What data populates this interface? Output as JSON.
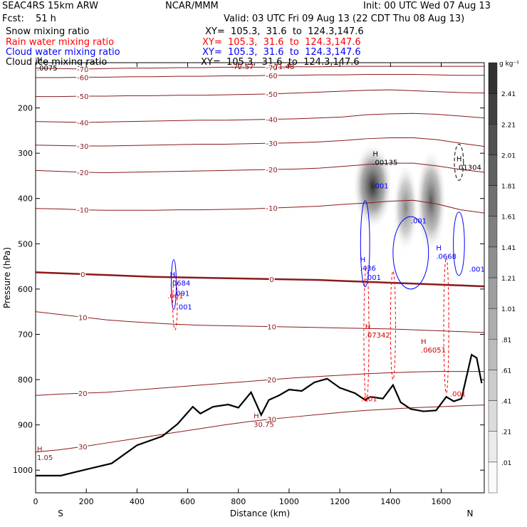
{
  "header": {
    "model": "SEAC4RS 15km ARW",
    "center": "NCAR/MMM",
    "init": "Init: 00 UTC Wed 07 Aug 13",
    "fcst_label": "Fcst:",
    "fcst_value": "51 h",
    "valid": "Valid: 03 UTC Fri 09 Aug 13 (22 CDT Thu 08 Aug 13)"
  },
  "fields": [
    {
      "name": "Snow mixing ratio",
      "color": "#000000",
      "xy": "XY=  105.3,  31.6  to  124.3,147.6"
    },
    {
      "name": "Rain water mixing ratio",
      "color": "#ff0000",
      "xy": "XY=  105.3,  31.6  to  124.3,147.6"
    },
    {
      "name": "Cloud water mixing ratio",
      "color": "#0000ff",
      "xy": "XY=  105.3,  31.6  to  124.3,147.6"
    },
    {
      "name": "Cloud ice mixing ratio",
      "color": "#000000",
      "xy": "XY=  105.3,  31.6  to  124.3,147.6"
    }
  ],
  "chart_data": {
    "type": "contour-cross-section",
    "xlabel": "Distance (km)",
    "ylabel": "Pressure (hPa)",
    "xlim": [
      0,
      1770
    ],
    "ylim": [
      1050,
      100
    ],
    "x_ticks": [
      0,
      200,
      400,
      600,
      800,
      1000,
      1200,
      1400,
      1600
    ],
    "y_ticks": [
      200,
      300,
      400,
      500,
      600,
      700,
      800,
      900,
      1000
    ],
    "left_end_label": "S",
    "right_end_label": "N",
    "colorbar": {
      "unit": "g kg⁻¹",
      "levels": [
        ".01",
        ".21",
        ".41",
        ".61",
        ".81",
        "1.01",
        "1.21",
        "1.41",
        "1.61",
        "1.81",
        "2.01",
        "2.21",
        "2.41"
      ]
    },
    "temperature_contours": [
      {
        "level": "-70",
        "p": [
          112,
          113,
          114,
          113,
          112,
          112,
          111,
          111,
          110,
          110,
          110,
          109,
          109,
          108,
          108,
          108,
          108,
          108,
          108,
          108
        ]
      },
      {
        "level": "-60",
        "p": [
          133,
          133,
          132,
          132,
          131,
          131,
          130,
          130,
          129,
          129,
          128,
          128,
          127,
          127,
          126,
          126,
          126,
          127,
          128,
          128
        ]
      },
      {
        "level": "-50",
        "p": [
          175,
          175,
          174,
          174,
          173,
          173,
          172,
          172,
          171,
          170,
          169,
          167,
          165,
          163,
          161,
          160,
          162,
          164,
          166,
          167
        ]
      },
      {
        "level": "-40",
        "p": [
          230,
          231,
          232,
          231,
          230,
          229,
          228,
          227,
          227,
          226,
          225,
          224,
          222,
          220,
          215,
          213,
          212,
          214,
          218,
          222
        ]
      },
      {
        "level": "-30",
        "p": [
          282,
          283,
          284,
          284,
          283,
          282,
          281,
          280,
          280,
          279,
          278,
          277,
          275,
          272,
          268,
          266,
          266,
          270,
          278,
          285
        ]
      },
      {
        "level": "-20",
        "p": [
          338,
          340,
          342,
          343,
          342,
          341,
          340,
          339,
          338,
          337,
          336,
          335,
          333,
          329,
          325,
          322,
          322,
          328,
          336,
          342
        ]
      },
      {
        "level": "-10",
        "p": [
          422,
          423,
          425,
          426,
          426,
          426,
          425,
          425,
          424,
          423,
          421,
          419,
          417,
          413,
          410,
          406,
          404,
          412,
          425,
          432
        ]
      },
      {
        "level": "0",
        "p": [
          563,
          565,
          567,
          569,
          571,
          573,
          574,
          575,
          576,
          577,
          578,
          579,
          580,
          582,
          584,
          586,
          588,
          590,
          592,
          594
        ]
      },
      {
        "level": "10",
        "p": [
          650,
          656,
          662,
          668,
          672,
          675,
          678,
          680,
          681,
          682,
          683,
          684,
          685,
          686,
          687,
          688,
          690,
          692,
          694,
          696
        ]
      },
      {
        "level": "20",
        "p": [
          835,
          832,
          830,
          828,
          824,
          820,
          816,
          812,
          808,
          804,
          800,
          796,
          793,
          790,
          787,
          785,
          783,
          782,
          782,
          782
        ]
      },
      {
        "level": "30",
        "p": [
          960,
          955,
          948,
          940,
          932,
          924,
          916,
          908,
          900,
          893,
          887,
          882,
          877,
          872,
          868,
          865,
          862,
          860,
          858,
          856
        ]
      }
    ],
    "terrain": [
      [
        0,
        1012
      ],
      [
        100,
        1012
      ],
      [
        150,
        1005
      ],
      [
        300,
        985
      ],
      [
        400,
        945
      ],
      [
        500,
        925
      ],
      [
        560,
        898
      ],
      [
        620,
        860
      ],
      [
        650,
        875
      ],
      [
        700,
        860
      ],
      [
        760,
        855
      ],
      [
        800,
        862
      ],
      [
        850,
        828
      ],
      [
        890,
        878
      ],
      [
        920,
        845
      ],
      [
        960,
        835
      ],
      [
        1000,
        822
      ],
      [
        1050,
        825
      ],
      [
        1100,
        806
      ],
      [
        1150,
        798
      ],
      [
        1200,
        818
      ],
      [
        1260,
        830
      ],
      [
        1300,
        845
      ],
      [
        1320,
        838
      ],
      [
        1370,
        842
      ],
      [
        1410,
        812
      ],
      [
        1440,
        850
      ],
      [
        1480,
        865
      ],
      [
        1530,
        870
      ],
      [
        1580,
        868
      ],
      [
        1620,
        838
      ],
      [
        1650,
        848
      ],
      [
        1680,
        842
      ],
      [
        1720,
        745
      ],
      [
        1740,
        752
      ],
      [
        1760,
        808
      ]
    ],
    "maxima": [
      {
        "field": "snow",
        "label": "H",
        "value": ".00135",
        "x": 1330,
        "p": 316
      },
      {
        "field": "ice",
        "label": "H",
        "value": ".01304",
        "x": 1660,
        "p": 327
      },
      {
        "field": "cloud",
        "label": "H",
        "value": ".0684",
        "x": 530,
        "p": 583
      },
      {
        "field": "cloud",
        "label": "H",
        "value": ".436",
        "x": 1280,
        "p": 550
      },
      {
        "field": "cloud",
        "label": "H",
        "value": ".0668",
        "x": 1580,
        "p": 524
      },
      {
        "field": "rain",
        "label": "H",
        "value": ".07342",
        "x": 1300,
        "p": 698
      },
      {
        "field": "rain",
        "label": "H",
        "value": ".06051",
        "x": 1520,
        "p": 731
      },
      {
        "field": "temp",
        "label": "H",
        "value": "30.75",
        "x": 860,
        "p": 895
      },
      {
        "field": "temp",
        "label": "H",
        "value": "1.05",
        "x": 0,
        "p": 968
      },
      {
        "field": "ice",
        "label": "H",
        "value": ".0075",
        "x": 0,
        "p": 108
      }
    ],
    "contour_value_labels": [
      {
        "text": "-72.57",
        "color": "#8b0000",
        "x": 770,
        "p": 114
      },
      {
        "text": "-71.48",
        "color": "#8b0000",
        "x": 930,
        "p": 114
      },
      {
        "text": ".001",
        "color": "#0000ff",
        "x": 1330,
        "p": 378
      },
      {
        "text": ".001",
        "color": "#0000ff",
        "x": 1480,
        "p": 455
      },
      {
        "text": ".001",
        "color": "#0000ff",
        "x": 1710,
        "p": 562
      },
      {
        "text": ".001",
        "color": "#0000ff",
        "x": 1300,
        "p": 580
      },
      {
        "text": ".091",
        "color": "#0000ff",
        "x": 545,
        "p": 615
      },
      {
        "text": ".001",
        "color": "#0000ff",
        "x": 555,
        "p": 645
      },
      {
        "text": ".001",
        "color": "#ff0000",
        "x": 520,
        "p": 621
      },
      {
        "text": ".001",
        "color": "#ff0000",
        "x": 1285,
        "p": 848
      },
      {
        "text": ".001",
        "color": "#ff0000",
        "x": 1635,
        "p": 837
      }
    ],
    "snow_shading": [
      {
        "x": 1330,
        "p_top": 275,
        "p_bot": 470,
        "max": 2.4
      },
      {
        "x": 1460,
        "p_top": 320,
        "p_bot": 520,
        "max": 0.7
      },
      {
        "x": 1560,
        "p_top": 290,
        "p_bot": 520,
        "max": 1.3
      }
    ]
  }
}
